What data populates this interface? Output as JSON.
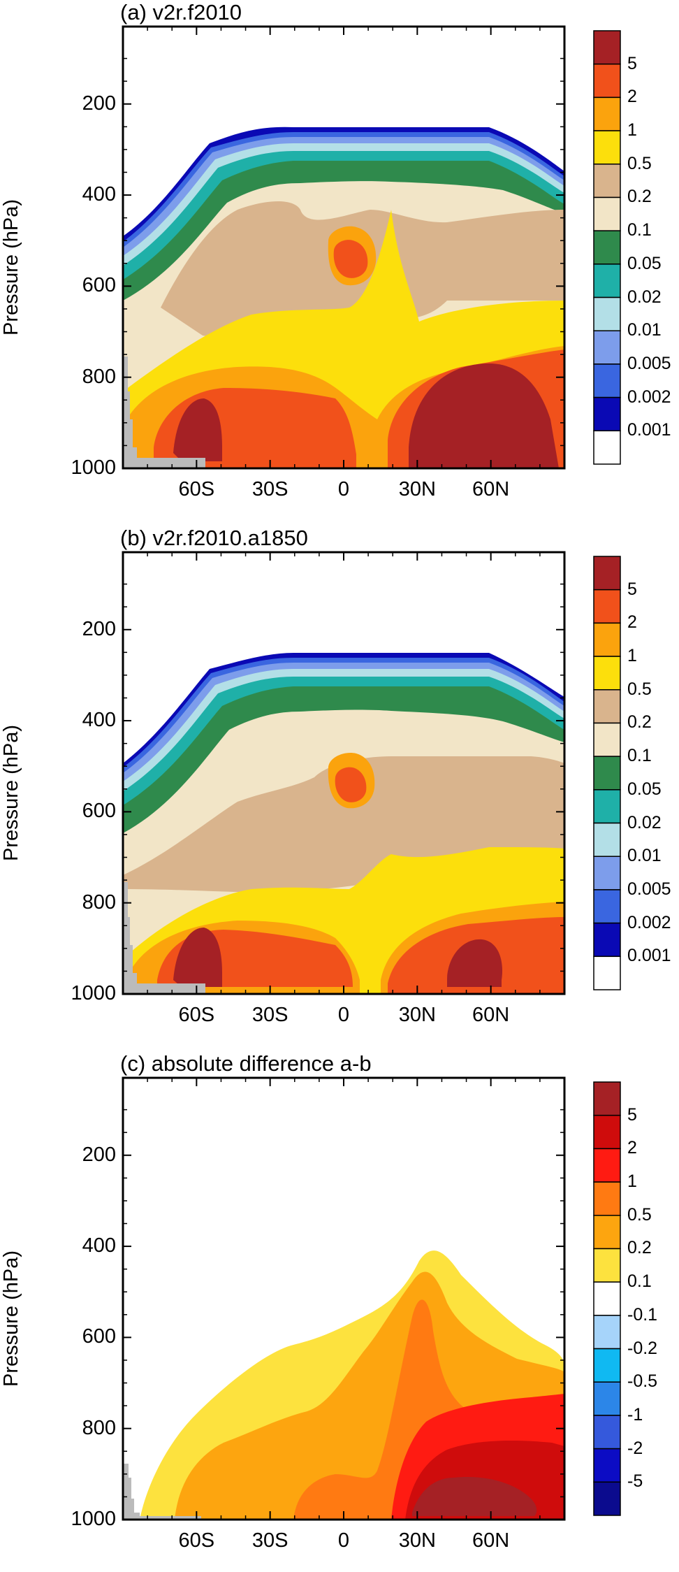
{
  "chart_data": [
    {
      "type": "contour",
      "title": "(a) v2r.f2010",
      "ylabel": "Pressure (hPa)",
      "xticks": [
        "60S",
        "30S",
        "0",
        "30N",
        "60N"
      ],
      "x_values": [
        -60,
        -30,
        0,
        30,
        60
      ],
      "yticks": [
        "200",
        "400",
        "600",
        "800",
        "1000"
      ],
      "y_values": [
        200,
        400,
        600,
        800,
        1000
      ],
      "ylim": [
        1000,
        30
      ],
      "xlim": [
        -90,
        90
      ],
      "colorbar": {
        "labels": [
          "5",
          "2",
          "1",
          "0.5",
          "0.2",
          "0.1",
          "0.05",
          "0.02",
          "0.01",
          "0.005",
          "0.002",
          "0.001"
        ],
        "colors": [
          "#a52125",
          "#f1511b",
          "#fba30d",
          "#fcdf0c",
          "#d9b48d",
          "#f2e5c7",
          "#2f8a4c",
          "#1fb0a8",
          "#b3dfe7",
          "#7d9deb",
          "#3a66e0",
          "#0a09b4",
          "#ffffff"
        ]
      }
    },
    {
      "type": "contour",
      "title": "(b) v2r.f2010.a1850",
      "ylabel": "Pressure (hPa)",
      "xticks": [
        "60S",
        "30S",
        "0",
        "30N",
        "60N"
      ],
      "x_values": [
        -60,
        -30,
        0,
        30,
        60
      ],
      "yticks": [
        "200",
        "400",
        "600",
        "800",
        "1000"
      ],
      "y_values": [
        200,
        400,
        600,
        800,
        1000
      ],
      "ylim": [
        1000,
        30
      ],
      "xlim": [
        -90,
        90
      ],
      "colorbar": {
        "labels": [
          "5",
          "2",
          "1",
          "0.5",
          "0.2",
          "0.1",
          "0.05",
          "0.02",
          "0.01",
          "0.005",
          "0.002",
          "0.001"
        ],
        "colors": [
          "#a52125",
          "#f1511b",
          "#fba30d",
          "#fcdf0c",
          "#d9b48d",
          "#f2e5c7",
          "#2f8a4c",
          "#1fb0a8",
          "#b3dfe7",
          "#7d9deb",
          "#3a66e0",
          "#0a09b4",
          "#ffffff"
        ]
      }
    },
    {
      "type": "contour",
      "title": "(c) absolute difference a-b",
      "ylabel": "Pressure (hPa)",
      "xticks": [
        "60S",
        "30S",
        "0",
        "30N",
        "60N"
      ],
      "x_values": [
        -60,
        -30,
        0,
        30,
        60
      ],
      "yticks": [
        "200",
        "400",
        "600",
        "800",
        "1000"
      ],
      "y_values": [
        200,
        400,
        600,
        800,
        1000
      ],
      "ylim": [
        1000,
        30
      ],
      "xlim": [
        -90,
        90
      ],
      "colorbar": {
        "labels": [
          "5",
          "2",
          "1",
          "0.5",
          "0.2",
          "0.1",
          "-0.1",
          "-0.2",
          "-0.5",
          "-1",
          "-2",
          "-5"
        ],
        "colors": [
          "#a52125",
          "#cf0c0c",
          "#ff1b12",
          "#ff7a12",
          "#fda50f",
          "#fde23e",
          "#ffffff",
          "#a6d4fa",
          "#10b9f2",
          "#2c86e8",
          "#3559dc",
          "#0c0cc4",
          "#0b0b8e"
        ]
      }
    }
  ]
}
